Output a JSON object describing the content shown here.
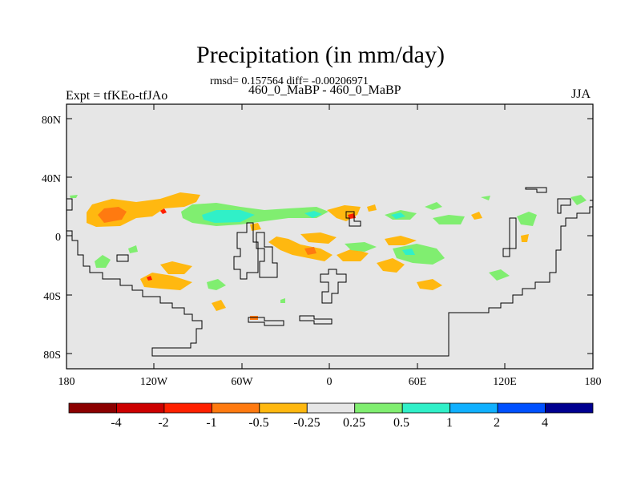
{
  "title": "Precipitation (in mm/day)",
  "stats": "rmsd= 0.157564 diff= -0.00206971",
  "subtitle": "460_0_MaBP - 460_0_MaBP",
  "experiment": "Expt = tfKEo-tfJAo",
  "season": "JJA",
  "axes": {
    "x_ticks": [
      "180",
      "120W",
      "60W",
      "0",
      "60E",
      "120E",
      "180"
    ],
    "y_ticks": [
      "80N",
      "40N",
      "0",
      "40S",
      "80S"
    ]
  },
  "colorbar": {
    "labels": [
      "-4",
      "-2",
      "-1",
      "-0.5",
      "-0.25",
      "0.25",
      "0.5",
      "1",
      "2",
      "4"
    ],
    "colors": [
      "#8b0000",
      "#cc0000",
      "#ff2000",
      "#ff7a10",
      "#ffb810",
      "#e6e6e6",
      "#80ee70",
      "#30f0c8",
      "#10b0ff",
      "#0050ff",
      "#000090"
    ]
  },
  "colors": {
    "background": "#e6e6e6",
    "coastline": "#000000"
  }
}
